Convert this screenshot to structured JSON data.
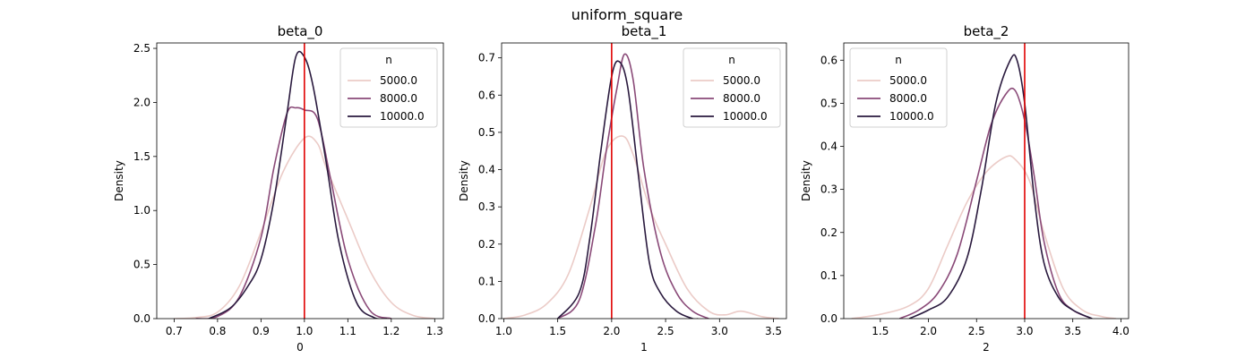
{
  "suptitle": "uniform_square",
  "colors": {
    "true_line": "#e00000",
    "series": [
      "#ebcbc7",
      "#8a4a78",
      "#2a1a3e"
    ]
  },
  "chart_data": [
    {
      "type": "line",
      "title": "beta_0",
      "xlabel": "0",
      "ylabel": "Density",
      "xlim": [
        0.66,
        1.32
      ],
      "ylim": [
        0,
        2.55
      ],
      "xticks": [
        0.7,
        0.8,
        0.9,
        1.0,
        1.1,
        1.2,
        1.3
      ],
      "xtick_labels": [
        "0.7",
        "0.8",
        "0.9",
        "1.0",
        "1.1",
        "1.2",
        "1.3"
      ],
      "yticks": [
        0.0,
        0.5,
        1.0,
        1.5,
        2.0,
        2.5
      ],
      "ytick_labels": [
        "0.0",
        "0.5",
        "1.0",
        "1.5",
        "2.0",
        "2.5"
      ],
      "true_value": 1.0,
      "legend": {
        "title": "n",
        "position": "top-right"
      },
      "series": [
        {
          "name": "5000.0",
          "x": [
            0.7,
            0.75,
            0.8,
            0.85,
            0.9,
            0.95,
            1.0,
            1.03,
            1.05,
            1.1,
            1.15,
            1.2,
            1.25,
            1.3
          ],
          "y": [
            0.0,
            0.01,
            0.06,
            0.3,
            0.8,
            1.35,
            1.67,
            1.62,
            1.4,
            0.92,
            0.45,
            0.15,
            0.03,
            0.0
          ]
        },
        {
          "name": "8000.0",
          "x": [
            0.75,
            0.8,
            0.85,
            0.9,
            0.93,
            0.96,
            0.98,
            1.0,
            1.03,
            1.06,
            1.1,
            1.15,
            1.2
          ],
          "y": [
            0.0,
            0.02,
            0.2,
            0.75,
            1.4,
            1.9,
            1.95,
            1.93,
            1.85,
            1.3,
            0.55,
            0.08,
            0.0
          ]
        },
        {
          "name": "10000.0",
          "x": [
            0.78,
            0.83,
            0.87,
            0.9,
            0.93,
            0.96,
            0.98,
            1.0,
            1.02,
            1.05,
            1.08,
            1.12,
            1.16,
            1.19
          ],
          "y": [
            0.0,
            0.1,
            0.3,
            0.55,
            1.1,
            1.9,
            2.42,
            2.42,
            2.15,
            1.45,
            0.7,
            0.15,
            0.01,
            0.0
          ]
        }
      ]
    },
    {
      "type": "line",
      "title": "beta_1",
      "xlabel": "1",
      "ylabel": "Density",
      "xlim": [
        0.98,
        3.62
      ],
      "ylim": [
        0,
        0.74
      ],
      "xticks": [
        1.0,
        1.5,
        2.0,
        2.5,
        3.0,
        3.5
      ],
      "xtick_labels": [
        "1.0",
        "1.5",
        "2.0",
        "2.5",
        "3.0",
        "3.5"
      ],
      "yticks": [
        0.0,
        0.1,
        0.2,
        0.3,
        0.4,
        0.5,
        0.6,
        0.7
      ],
      "ytick_labels": [
        "0.0",
        "0.1",
        "0.2",
        "0.3",
        "0.4",
        "0.5",
        "0.6",
        "0.7"
      ],
      "true_value": 2.0,
      "legend": {
        "title": "n",
        "position": "top-right"
      },
      "series": [
        {
          "name": "5000.0",
          "x": [
            1.0,
            1.2,
            1.4,
            1.6,
            1.8,
            1.95,
            2.1,
            2.2,
            2.35,
            2.5,
            2.7,
            2.9,
            3.05,
            3.2,
            3.4,
            3.55
          ],
          "y": [
            0.0,
            0.01,
            0.04,
            0.12,
            0.3,
            0.45,
            0.49,
            0.44,
            0.3,
            0.2,
            0.08,
            0.02,
            0.01,
            0.02,
            0.005,
            0.0
          ]
        },
        {
          "name": "8000.0",
          "x": [
            1.5,
            1.7,
            1.85,
            1.95,
            2.05,
            2.12,
            2.2,
            2.3,
            2.45,
            2.6,
            2.75,
            2.9
          ],
          "y": [
            0.0,
            0.05,
            0.25,
            0.45,
            0.62,
            0.71,
            0.64,
            0.4,
            0.18,
            0.07,
            0.02,
            0.0
          ]
        },
        {
          "name": "10000.0",
          "x": [
            1.5,
            1.7,
            1.8,
            1.9,
            2.0,
            2.07,
            2.15,
            2.25,
            2.35,
            2.45,
            2.6,
            2.75,
            2.8
          ],
          "y": [
            0.0,
            0.07,
            0.22,
            0.45,
            0.65,
            0.69,
            0.62,
            0.38,
            0.15,
            0.07,
            0.02,
            0.0,
            0.0
          ]
        }
      ]
    },
    {
      "type": "line",
      "title": "beta_2",
      "xlabel": "2",
      "ylabel": "Density",
      "xlim": [
        1.12,
        4.08
      ],
      "ylim": [
        0,
        0.64
      ],
      "xticks": [
        1.5,
        2.0,
        2.5,
        3.0,
        3.5,
        4.0
      ],
      "xtick_labels": [
        "1.5",
        "2.0",
        "2.5",
        "3.0",
        "3.5",
        "4.0"
      ],
      "yticks": [
        0.0,
        0.1,
        0.2,
        0.3,
        0.4,
        0.5,
        0.6
      ],
      "ytick_labels": [
        "0.0",
        "0.1",
        "0.2",
        "0.3",
        "0.4",
        "0.5",
        "0.6"
      ],
      "true_value": 3.0,
      "legend": {
        "title": "n",
        "position": "top-left"
      },
      "series": [
        {
          "name": "5000.0",
          "x": [
            1.2,
            1.5,
            1.8,
            2.0,
            2.2,
            2.4,
            2.6,
            2.8,
            2.9,
            3.05,
            3.2,
            3.4,
            3.6,
            3.8,
            3.95
          ],
          "y": [
            0.0,
            0.01,
            0.03,
            0.07,
            0.17,
            0.27,
            0.34,
            0.375,
            0.37,
            0.32,
            0.2,
            0.07,
            0.02,
            0.005,
            0.0
          ]
        },
        {
          "name": "8000.0",
          "x": [
            1.7,
            1.9,
            2.1,
            2.3,
            2.5,
            2.65,
            2.8,
            2.9,
            3.0,
            3.1,
            3.2,
            3.35,
            3.5,
            3.7
          ],
          "y": [
            0.0,
            0.02,
            0.06,
            0.15,
            0.32,
            0.45,
            0.52,
            0.53,
            0.46,
            0.33,
            0.18,
            0.06,
            0.02,
            0.0
          ]
        },
        {
          "name": "10000.0",
          "x": [
            1.8,
            2.0,
            2.2,
            2.4,
            2.55,
            2.7,
            2.85,
            2.92,
            3.0,
            3.1,
            3.2,
            3.35,
            3.5,
            3.7
          ],
          "y": [
            0.0,
            0.02,
            0.05,
            0.14,
            0.3,
            0.5,
            0.6,
            0.6,
            0.5,
            0.28,
            0.13,
            0.05,
            0.02,
            0.0
          ]
        }
      ]
    }
  ]
}
